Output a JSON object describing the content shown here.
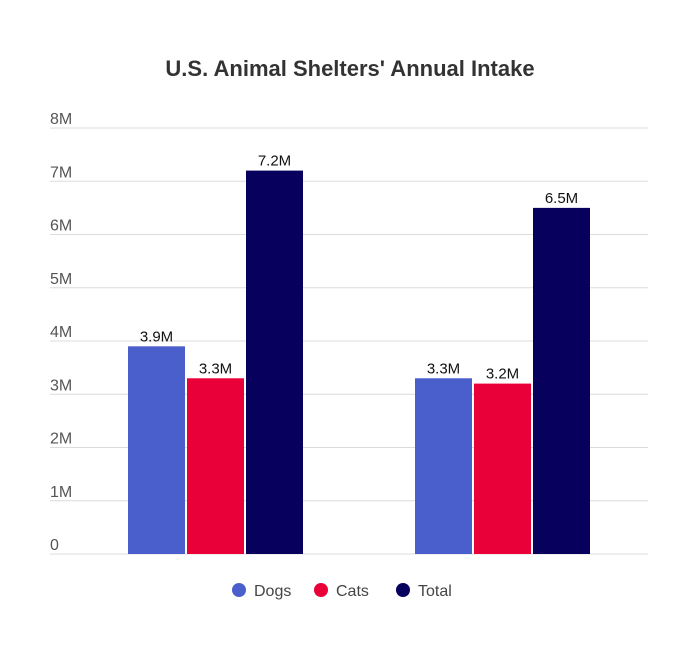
{
  "chart_data": {
    "type": "bar",
    "title": "U.S. Animal Shelters' Annual Intake",
    "categories": [
      "",
      ""
    ],
    "series": [
      {
        "name": "Dogs",
        "color": "#4a5fcc",
        "values": [
          3.9,
          3.3
        ],
        "labels": [
          "3.9M",
          "3.3M"
        ]
      },
      {
        "name": "Cats",
        "color": "#ea0039",
        "values": [
          3.3,
          3.2
        ],
        "labels": [
          "3.3M",
          "3.2M"
        ]
      },
      {
        "name": "Total",
        "color": "#07005c",
        "values": [
          7.2,
          6.5
        ],
        "labels": [
          "7.2M",
          "6.5M"
        ]
      }
    ],
    "ylim": [
      0,
      8
    ],
    "yticks": [
      0,
      1,
      2,
      3,
      4,
      5,
      6,
      7,
      8
    ],
    "ytick_labels": [
      "0",
      "1M",
      "2M",
      "3M",
      "4M",
      "5M",
      "6M",
      "7M",
      "8M"
    ],
    "grid": true,
    "legend_position": "bottom-center"
  }
}
